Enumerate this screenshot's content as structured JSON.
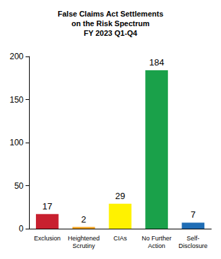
{
  "chart_data": {
    "type": "bar",
    "title": "False Claims Act Settlements\non the Risk Spectrum\nFY 2023 Q1-Q4",
    "categories": [
      "Exclusion",
      "Heightened\nScrutiny",
      "CIAs",
      "No Further\nAction",
      "Self-\nDisclosure"
    ],
    "values": [
      17,
      2,
      29,
      184,
      7
    ],
    "colors": [
      "#c8202f",
      "#f2a21d",
      "#fff200",
      "#1aa14a",
      "#1f6db5"
    ],
    "ylim": [
      0,
      200
    ],
    "yticks": [
      0,
      50,
      100,
      150,
      200
    ],
    "grid": false,
    "data_labels": true
  }
}
